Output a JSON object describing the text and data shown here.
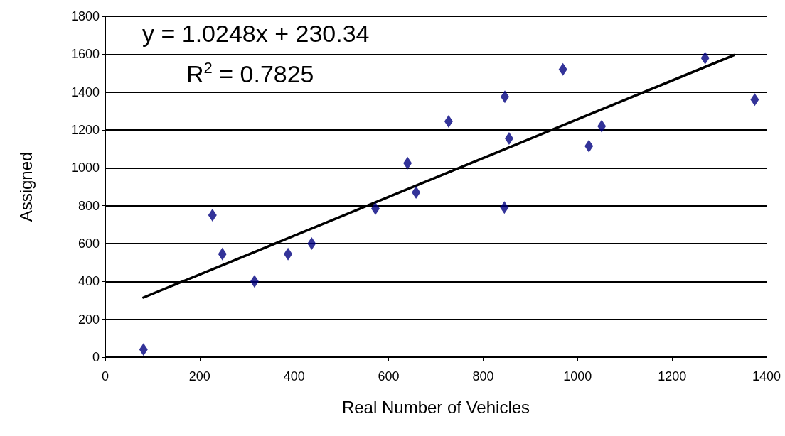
{
  "chart_data": {
    "type": "scatter",
    "xlabel": "Real Number of Vehicles",
    "ylabel": "Assigned",
    "xlim": [
      0,
      1400
    ],
    "xticks": [
      0,
      200,
      400,
      600,
      800,
      1000,
      1200,
      1400
    ],
    "ylim": [
      0,
      1800
    ],
    "yticks": [
      0,
      200,
      400,
      600,
      800,
      1000,
      1200,
      1400,
      1600,
      1800
    ],
    "grid": "y",
    "marker": "diamond",
    "series": [
      {
        "color": "#000080",
        "x": [
          81,
          227,
          248,
          316,
          387,
          437,
          572,
          640,
          658,
          727,
          845,
          846,
          855,
          969,
          1024,
          1051,
          1270,
          1375
        ],
        "values": [
          40,
          750,
          545,
          400,
          545,
          600,
          785,
          1025,
          870,
          1245,
          790,
          1375,
          1155,
          1520,
          1115,
          1220,
          1580,
          1360
        ]
      },
      {
        "type": "line",
        "color": "#000000",
        "marker": "none",
        "x": [
          81,
          1331
        ],
        "values": [
          315,
          1595
        ]
      }
    ],
    "annotations": [
      "y = 1.0248x + 230.34",
      "R$^{2}$ = 0.7825"
    ]
  }
}
